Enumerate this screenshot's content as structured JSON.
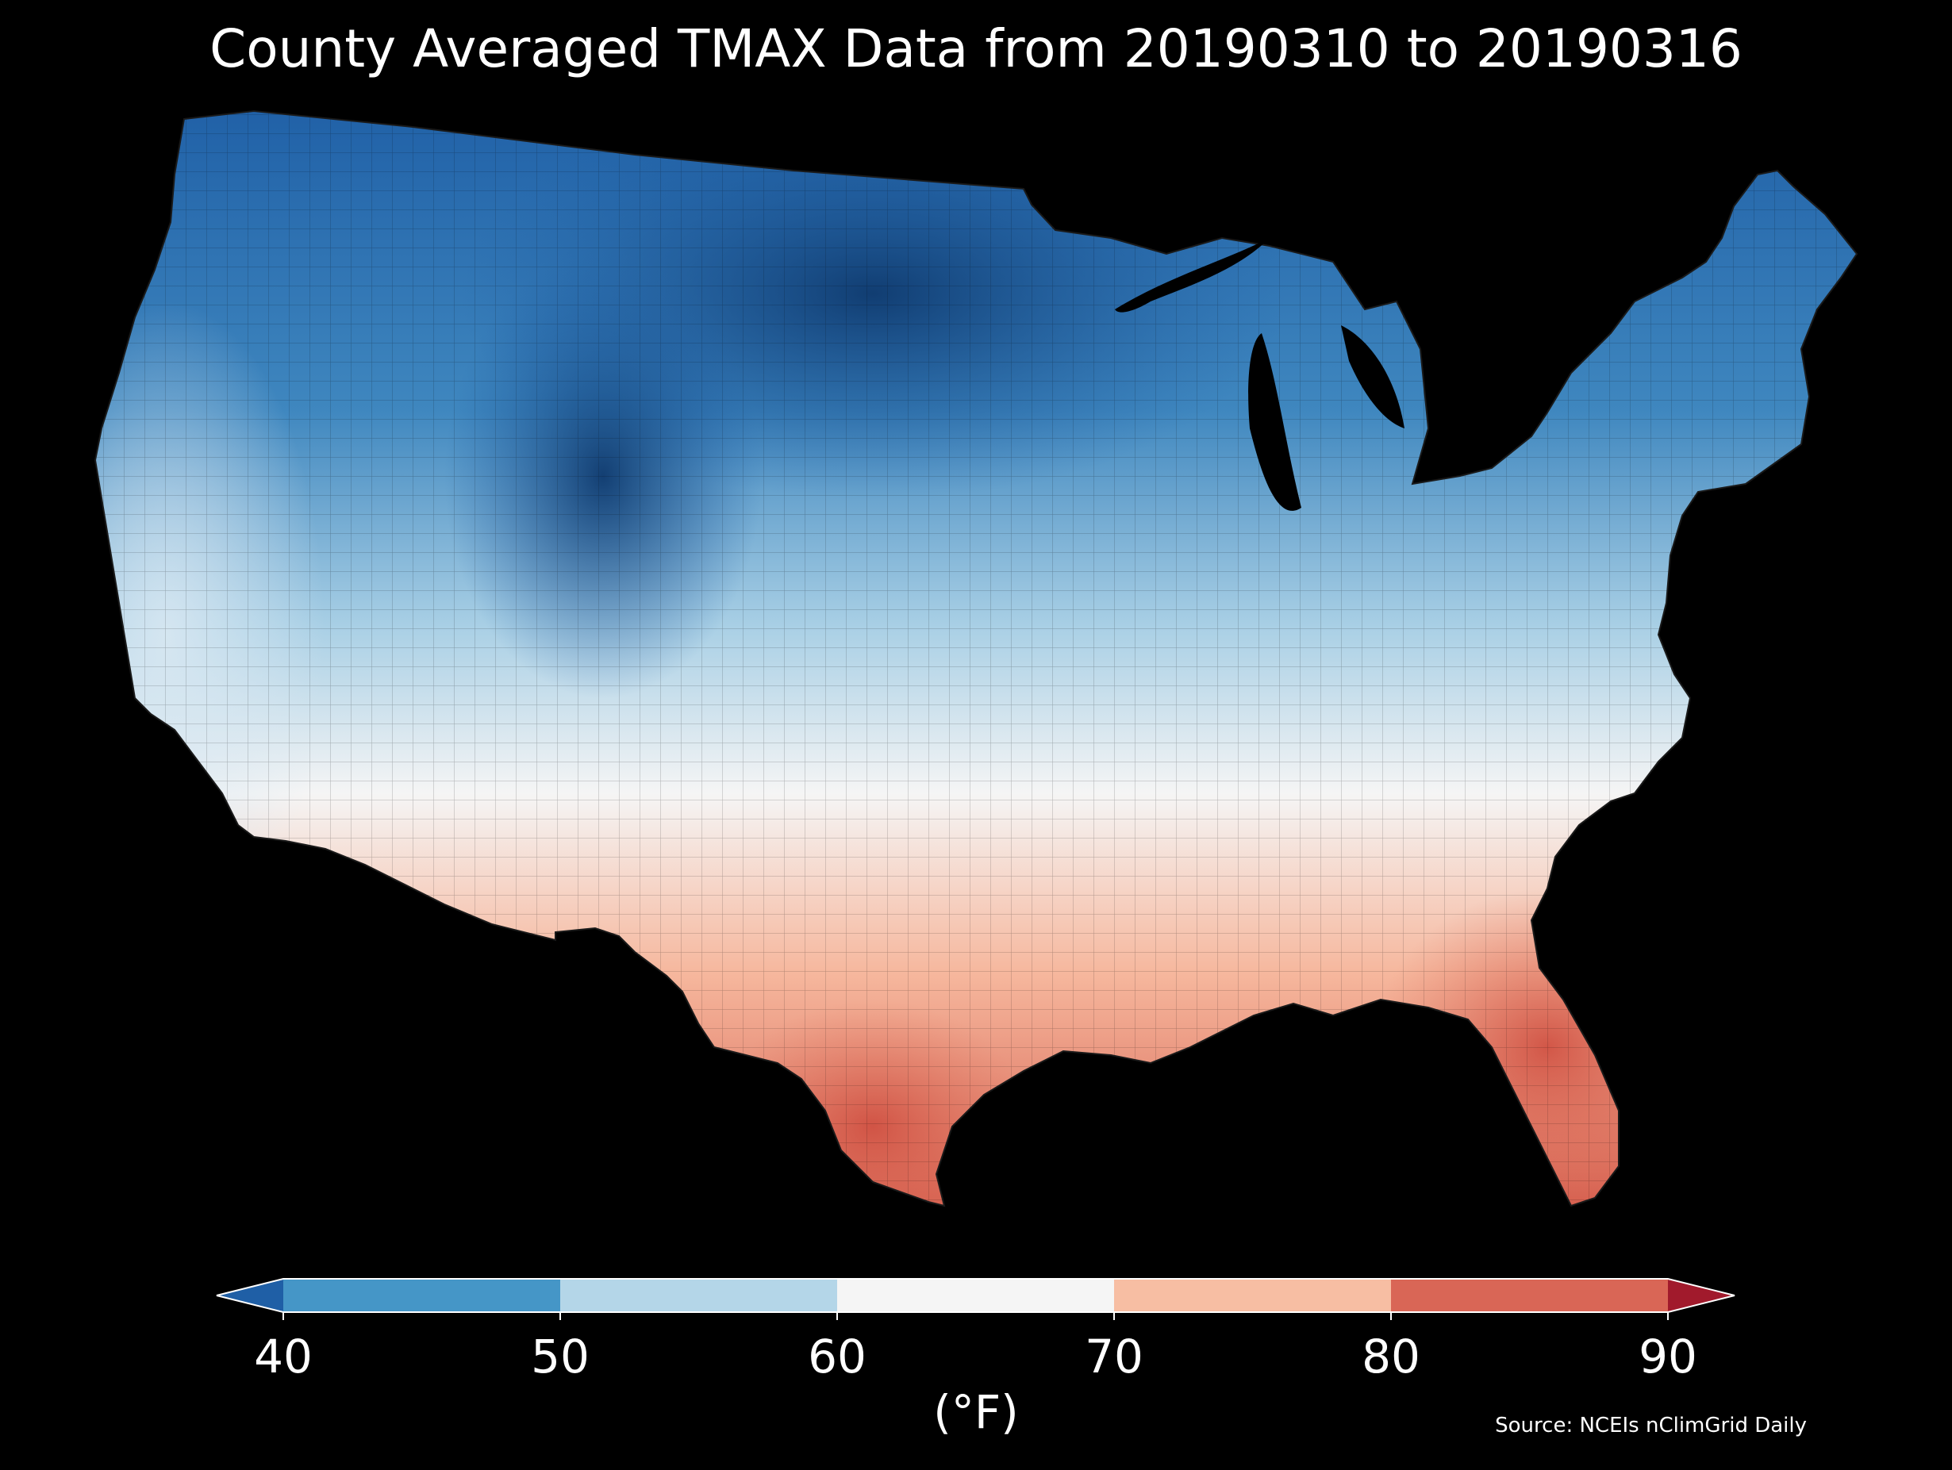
{
  "title": "County Averaged TMAX Data from 20190310 to 20190316",
  "colorbar": {
    "unit_label": "(°F)",
    "ticks": [
      "40",
      "50",
      "60",
      "70",
      "80",
      "90"
    ],
    "bins": [
      {
        "range": "<40",
        "color": "#1f5fa6"
      },
      {
        "range": "40-50",
        "color": "#4596c7"
      },
      {
        "range": "50-60",
        "color": "#b4d6e8"
      },
      {
        "range": "60-70",
        "color": "#f5f5f5"
      },
      {
        "range": "70-80",
        "color": "#f7bea3"
      },
      {
        "range": "80-90",
        "color": "#d96656"
      },
      {
        "range": ">90",
        "color": "#a11a2c"
      }
    ],
    "extend": "both"
  },
  "source": "Source: NCEIs nClimGrid Daily",
  "map_regions": [
    {
      "region": "Northern Plains",
      "band": "<40"
    },
    {
      "region": "Upper Midwest",
      "band": "40-50"
    },
    {
      "region": "Northwest",
      "band": "40-50"
    },
    {
      "region": "Rockies",
      "band": "<40"
    },
    {
      "region": "Southwest",
      "band": "50-60"
    },
    {
      "region": "Pacific Coast",
      "band": "50-60"
    },
    {
      "region": "Ohio Valley",
      "band": "60-70"
    },
    {
      "region": "Northeast",
      "band": "40-50"
    },
    {
      "region": "Southeast",
      "band": "70-80"
    },
    {
      "region": "Gulf Coast",
      "band": "70-80"
    },
    {
      "region": "Florida Peninsula",
      "band": "80-90"
    },
    {
      "region": "South Texas",
      "band": "80-90"
    }
  ]
}
